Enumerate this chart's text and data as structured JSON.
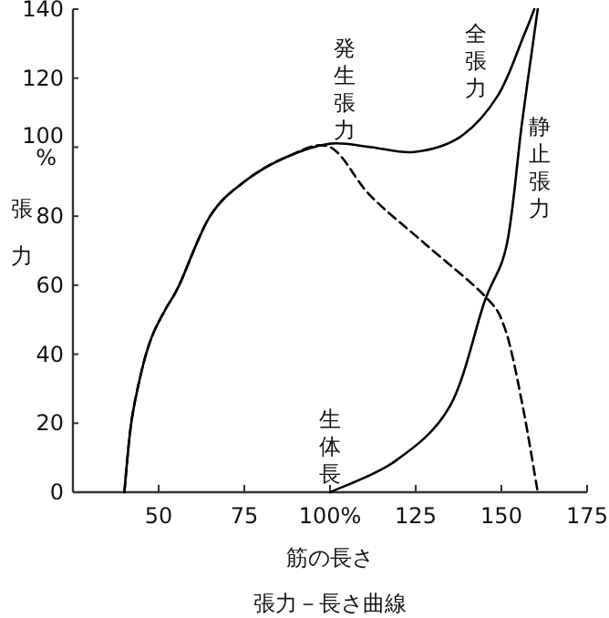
{
  "chart_data": {
    "type": "line",
    "title": "張力－長さ曲線",
    "xlabel": "筋の長さ",
    "ylabel": "張力",
    "xlim": [
      25,
      175
    ],
    "xticks": [
      50,
      75,
      {
        "value": 100,
        "label": "100%"
      },
      125,
      150,
      175
    ],
    "ylim": [
      0,
      140
    ],
    "yticks": [
      0,
      20,
      40,
      60,
      80,
      {
        "value": 100,
        "label": "100%"
      },
      120,
      140
    ],
    "series": [
      {
        "name": "全張力",
        "color": "#000000",
        "line_style": "solid",
        "x": [
          40,
          42,
          45,
          48,
          52,
          56,
          65,
          75,
          87,
          100,
          112,
          124.5,
          138,
          149,
          156.4,
          159.6
        ],
        "values": [
          0,
          20,
          35,
          45,
          53,
          60,
          80,
          90,
          97,
          101,
          100,
          98.6,
          103,
          115,
          132,
          140
        ]
      },
      {
        "name": "静止張力",
        "color": "#000000",
        "line_style": "solid",
        "x": [
          100,
          119,
          135,
          145,
          151.6,
          156,
          160.6
        ],
        "values": [
          0,
          9,
          25,
          55,
          72,
          107,
          140
        ]
      },
      {
        "name": "発生張力",
        "color": "#000000",
        "line_style": "dashed",
        "x": [
          40,
          42,
          45,
          48,
          52,
          56,
          65,
          75,
          87,
          100,
          111.7,
          127.7,
          145,
          151,
          156,
          160.6
        ],
        "values": [
          0,
          20,
          35,
          45,
          53,
          60,
          80,
          90,
          97,
          100,
          86,
          72,
          57,
          47.5,
          26,
          0
        ]
      }
    ],
    "annotations": [
      {
        "text": "生体長",
        "x": 100,
        "y": 0
      }
    ],
    "grid": false
  }
}
